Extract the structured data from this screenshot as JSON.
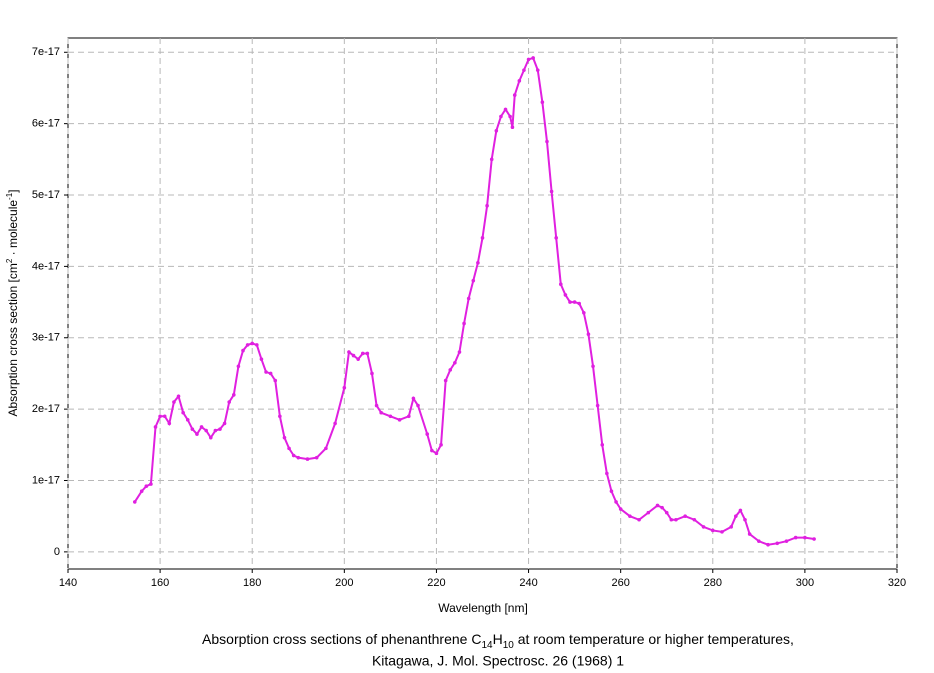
{
  "chart_data": {
    "type": "line",
    "title": [
      "Absorption cross sections of phenanthrene C",
      "14",
      "H",
      "10",
      " at room temperature or higher temperatures,"
    ],
    "subtitle": "Kitagawa, J. Mol. Spectrosc. 26 (1968) 1",
    "x_label": "Wavelength [nm]",
    "y_label": [
      "Absorption cross section [cm",
      "2",
      " · molecule",
      "-1",
      "]"
    ],
    "xlim": [
      140,
      320
    ],
    "xticks": [
      140,
      160,
      180,
      200,
      220,
      240,
      260,
      280,
      300,
      320
    ],
    "ylim": [
      -2.4e-18,
      7.2e-17
    ],
    "yticks": [
      0,
      1e-17,
      2e-17,
      3e-17,
      4e-17,
      5e-17,
      6e-17,
      7e-17
    ],
    "grid": true,
    "color": "#e020e0",
    "x": [
      154.5,
      156,
      157,
      158,
      159,
      160,
      161,
      162,
      163,
      164,
      165,
      166,
      167,
      168,
      169,
      170,
      171,
      172,
      173,
      174,
      175,
      176,
      177,
      178,
      179,
      180,
      181,
      182,
      183,
      184,
      185,
      186,
      187,
      188,
      189,
      190,
      192,
      194,
      196,
      198,
      200,
      201,
      202,
      203,
      204,
      205,
      206,
      207,
      208,
      210,
      212,
      214,
      215,
      216,
      218,
      219,
      220,
      221,
      222,
      223,
      224,
      225,
      226,
      227,
      228,
      229,
      230,
      231,
      232,
      233,
      234,
      235,
      236,
      236.5,
      237,
      238,
      239,
      240,
      241,
      242,
      243,
      244,
      245,
      246,
      247,
      248,
      249,
      250,
      251,
      252,
      253,
      254,
      255,
      256,
      257,
      258,
      259,
      260,
      262,
      264,
      266,
      268,
      269,
      270,
      271,
      272,
      274,
      276,
      278,
      280,
      282,
      284,
      285,
      286,
      287,
      288,
      290,
      292,
      294,
      296,
      298,
      300,
      302
    ],
    "values": [
      7e-18,
      8.5e-18,
      9.2e-18,
      9.5e-18,
      1.75e-17,
      1.9e-17,
      1.9e-17,
      1.8e-17,
      2.1e-17,
      2.18e-17,
      1.95e-17,
      1.85e-17,
      1.72e-17,
      1.65e-17,
      1.75e-17,
      1.7e-17,
      1.6e-17,
      1.7e-17,
      1.72e-17,
      1.8e-17,
      2.1e-17,
      2.2e-17,
      2.6e-17,
      2.82e-17,
      2.9e-17,
      2.92e-17,
      2.9e-17,
      2.7e-17,
      2.52e-17,
      2.5e-17,
      2.4e-17,
      1.9e-17,
      1.6e-17,
      1.45e-17,
      1.35e-17,
      1.32e-17,
      1.3e-17,
      1.32e-17,
      1.45e-17,
      1.8e-17,
      2.3e-17,
      2.8e-17,
      2.75e-17,
      2.7e-17,
      2.78e-17,
      2.78e-17,
      2.5e-17,
      2.05e-17,
      1.95e-17,
      1.9e-17,
      1.85e-17,
      1.9e-17,
      2.15e-17,
      2.05e-17,
      1.65e-17,
      1.42e-17,
      1.38e-17,
      1.5e-17,
      2.4e-17,
      2.55e-17,
      2.65e-17,
      2.8e-17,
      3.2e-17,
      3.55e-17,
      3.8e-17,
      4.05e-17,
      4.4e-17,
      4.85e-17,
      5.5e-17,
      5.9e-17,
      6.1e-17,
      6.2e-17,
      6.1e-17,
      5.95e-17,
      6.4e-17,
      6.6e-17,
      6.75e-17,
      6.9e-17,
      6.92e-17,
      6.75e-17,
      6.3e-17,
      5.75e-17,
      5.05e-17,
      4.4e-17,
      3.75e-17,
      3.6e-17,
      3.5e-17,
      3.5e-17,
      3.48e-17,
      3.35e-17,
      3.05e-17,
      2.6e-17,
      2.05e-17,
      1.5e-17,
      1.1e-17,
      8.5e-18,
      7e-18,
      6e-18,
      5e-18,
      4.5e-18,
      5.5e-18,
      6.5e-18,
      6.2e-18,
      5.5e-18,
      4.5e-18,
      4.5e-18,
      5e-18,
      4.5e-18,
      3.5e-18,
      3e-18,
      2.8e-18,
      3.5e-18,
      5e-18,
      5.8e-18,
      4.5e-18,
      2.5e-18,
      1.5e-18,
      1e-18,
      1.2e-18,
      1.5e-18,
      2e-18,
      2e-18,
      1.8e-18
    ]
  }
}
